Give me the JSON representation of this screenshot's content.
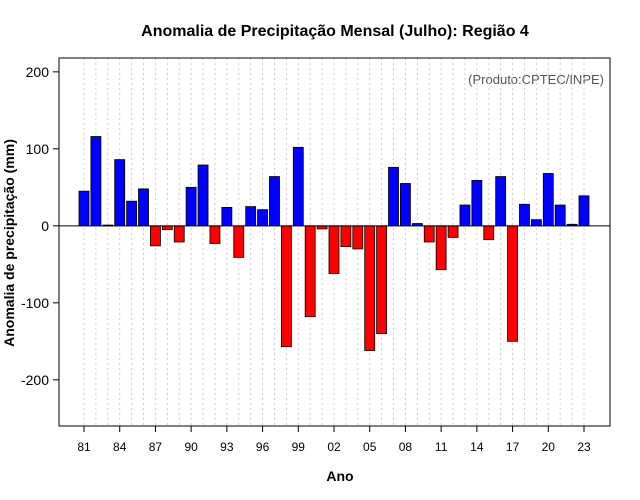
{
  "chart_data": {
    "type": "bar",
    "title": "Anomalia de Precipitação Mensal (Julho): Região 4",
    "xlabel": "Ano",
    "ylabel": "Anomalia de precipitação (mm)",
    "source_note": "(Produto:CPTEC/INPE)",
    "ylim": [
      -260,
      218
    ],
    "yticks": [
      -200,
      -100,
      0,
      100,
      200
    ],
    "xticks": [
      "81",
      "84",
      "87",
      "90",
      "93",
      "96",
      "99",
      "02",
      "05",
      "08",
      "11",
      "14",
      "17",
      "20",
      "23"
    ],
    "grid": true,
    "colors": {
      "positive": "#0000ff",
      "negative": "#ff0000",
      "edge": "#000000"
    },
    "categories": [
      "1981",
      "1982",
      "1983",
      "1984",
      "1985",
      "1986",
      "1987",
      "1988",
      "1989",
      "1990",
      "1991",
      "1992",
      "1993",
      "1994",
      "1995",
      "1996",
      "1997",
      "1998",
      "1999",
      "2000",
      "2001",
      "2002",
      "2003",
      "2004",
      "2005",
      "2006",
      "2007",
      "2008",
      "2009",
      "2010",
      "2011",
      "2012",
      "2013",
      "2014",
      "2015",
      "2016",
      "2017",
      "2018",
      "2019",
      "2020",
      "2021",
      "2022",
      "2023"
    ],
    "values": [
      45,
      116,
      1,
      86,
      32,
      48,
      -26,
      -5,
      -21,
      50,
      79,
      -23,
      24,
      -41,
      25,
      21,
      64,
      -157,
      102,
      -118,
      -4,
      -62,
      -27,
      -30,
      -162,
      -140,
      76,
      55,
      3,
      -21,
      -57,
      -15,
      27,
      59,
      -18,
      64,
      -150,
      28,
      8,
      68,
      27,
      2,
      39
    ]
  }
}
